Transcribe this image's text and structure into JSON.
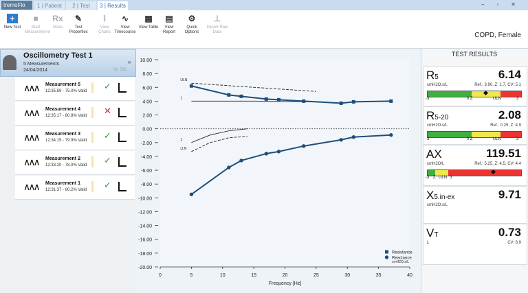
{
  "window": {
    "app": "tremoFlo",
    "tabs": [
      "1 | Patient",
      "2 | Test",
      "3 | Results"
    ]
  },
  "toolbar": {
    "buttons": [
      {
        "label": "New Test",
        "enabled": true
      },
      {
        "label": "Start Measurement",
        "enabled": false
      },
      {
        "label": "Dose",
        "enabled": false
      },
      {
        "label": "Test Properties",
        "enabled": true
      },
      {
        "label": "View Charts",
        "enabled": false
      },
      {
        "label": "View Timecourse",
        "enabled": true
      },
      {
        "label": "View Table",
        "enabled": true
      },
      {
        "label": "View Report",
        "enabled": true
      },
      {
        "label": "Quick Options",
        "enabled": true
      },
      {
        "label": "Import Raw Data",
        "enabled": false
      }
    ],
    "patient": "COPD, Female"
  },
  "test": {
    "title": "Oscillometry Test 1",
    "count": "5 Measurements",
    "date": "24/04/2014",
    "code": "St: 782"
  },
  "measurements": [
    {
      "name": "Measurement 5",
      "detail": "12:35:59 - 75.0% Valid",
      "valid": true
    },
    {
      "name": "Measurement 4",
      "detail": "12:35:17 - 80.8% Valid",
      "valid": false
    },
    {
      "name": "Measurement 3",
      "detail": "12:34:15 - 79.9% Valid",
      "valid": true
    },
    {
      "name": "Measurement 2",
      "detail": "12:33:20 - 78.0% Valid",
      "valid": true
    },
    {
      "name": "Measurement 1",
      "detail": "12:31:37 - 80.2% Valid",
      "valid": true
    }
  ],
  "chart_data": {
    "type": "line",
    "x_label": "Frequency [Hz]",
    "unit": "cmH2O.s/L",
    "x": [
      5,
      11,
      13,
      17,
      19,
      23,
      29,
      31,
      37
    ],
    "series": [
      {
        "name": "Resistance",
        "color": "#1f4e79",
        "marker": "square",
        "values": [
          6.2,
          4.9,
          4.7,
          4.3,
          4.2,
          4.0,
          3.7,
          3.9,
          4.0
        ]
      },
      {
        "name": "Reactance",
        "color": "#1f4e79",
        "marker": "circle",
        "values": [
          -9.5,
          -5.6,
          -4.6,
          -3.6,
          -3.3,
          -2.5,
          -1.6,
          -1.2,
          -0.9
        ]
      }
    ],
    "reference_lines": [
      {
        "label": "ULN",
        "dashed": true,
        "x": [
          5,
          10,
          15,
          20,
          25
        ],
        "values": [
          6.6,
          6.3,
          6.0,
          5.7,
          5.4
        ]
      },
      {
        "label": "1",
        "dashed": false,
        "x": [
          5,
          15,
          25
        ],
        "values": [
          4.0,
          4.0,
          3.9
        ]
      },
      {
        "label": "1",
        "dashed": false,
        "x": [
          5,
          8,
          11,
          14
        ],
        "values": [
          -2.0,
          -0.9,
          -0.3,
          0.0
        ]
      },
      {
        "label": "LLN",
        "dashed": true,
        "x": [
          5,
          8,
          11,
          14
        ],
        "values": [
          -3.3,
          -2.0,
          -1.3,
          -1.1
        ]
      }
    ],
    "xlim": [
      0,
      40
    ],
    "xticks": [
      0,
      5,
      10,
      15,
      20,
      25,
      30,
      35,
      40
    ],
    "ylim": [
      -20,
      10
    ],
    "yticks": [
      {
        "value": 10,
        "label": "10.00"
      },
      {
        "value": 8,
        "label": "8.00"
      },
      {
        "value": 6,
        "label": "6.00"
      },
      {
        "value": 4,
        "label": "4.00"
      },
      {
        "value": 2,
        "label": "2.00"
      },
      {
        "value": 0,
        "label": "0.00"
      },
      {
        "value": -2,
        "label": "-2.00"
      },
      {
        "value": -4,
        "label": "-4.00"
      },
      {
        "value": -6,
        "label": "-6.00"
      },
      {
        "value": -8,
        "label": "-8.00"
      },
      {
        "value": -10,
        "label": "-10.00"
      },
      {
        "value": -12,
        "label": "-12.00"
      },
      {
        "value": -14,
        "label": "-14.00"
      },
      {
        "value": -16,
        "label": "-16.00"
      },
      {
        "value": -18,
        "label": "-18.00"
      },
      {
        "value": -20,
        "label": "-20.00"
      }
    ]
  },
  "results": {
    "title": "TEST RESULTS",
    "cards": [
      {
        "symbol": "R",
        "sub": "5",
        "value": 6.14,
        "unit": "cmH2O.s/L",
        "ref": "Ref.: 3.90, Z: 1.7, CV: 5.1",
        "scale": [
          "-3",
          "0 Z",
          "ULN",
          "3"
        ]
      },
      {
        "symbol": "R",
        "sub": "5-20",
        "value": 2.08,
        "unit": "cmH2O.s/L",
        "ref": "Ref.: 0.25, Z: 4.9",
        "scale": [
          "-3",
          "0 Z",
          "ULN",
          "3"
        ]
      },
      {
        "symbol": "AX",
        "sub": null,
        "value": 119.51,
        "unit": "cmH2O/L",
        "ref": "Ref.: 5.25, Z: 4.5, CV: 4.4",
        "scale": [
          "-3",
          "Z",
          "ULN",
          "3"
        ]
      },
      {
        "symbol": "X",
        "sub": "5.in-ex",
        "value": 9.71,
        "unit": "cmH2O.s/L",
        "ref": null,
        "scale": null
      },
      {
        "symbol": "V",
        "sub": "T",
        "value": 0.73,
        "unit": "L",
        "ref": "CV: 6.9",
        "scale": null
      }
    ]
  }
}
